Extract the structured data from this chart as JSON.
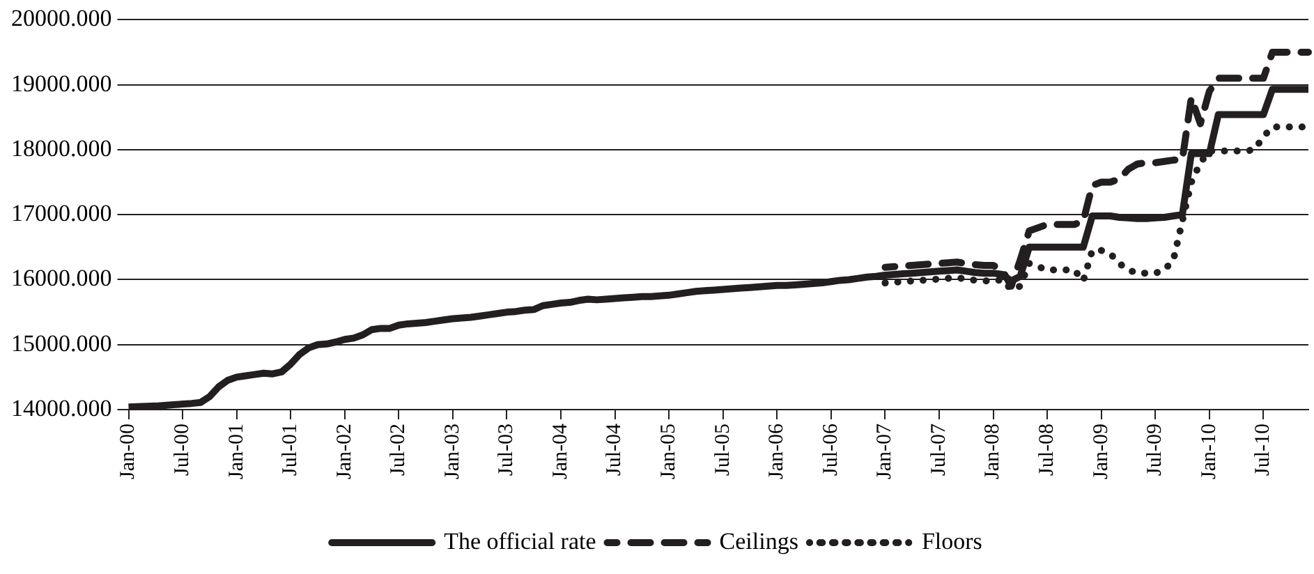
{
  "chart_data": {
    "type": "line",
    "categories": [
      "Jan-00",
      null,
      null,
      null,
      null,
      null,
      "Jul-00",
      null,
      null,
      null,
      null,
      null,
      "Jan-01",
      null,
      null,
      null,
      null,
      null,
      "Jul-01",
      null,
      null,
      null,
      null,
      null,
      "Jan-02",
      null,
      null,
      null,
      null,
      null,
      "Jul-02",
      null,
      null,
      null,
      null,
      null,
      "Jan-03",
      null,
      null,
      null,
      null,
      null,
      "Jul-03",
      null,
      null,
      null,
      null,
      null,
      "Jan-04",
      null,
      null,
      null,
      null,
      null,
      "Jul-04",
      null,
      null,
      null,
      null,
      null,
      "Jan-05",
      null,
      null,
      null,
      null,
      null,
      "Jul-05",
      null,
      null,
      null,
      null,
      null,
      "Jan-06",
      null,
      null,
      null,
      null,
      null,
      "Jul-06",
      null,
      null,
      null,
      null,
      null,
      "Jan-07",
      null,
      null,
      null,
      null,
      null,
      "Jul-07",
      null,
      null,
      null,
      null,
      null,
      "Jan-08",
      null,
      null,
      null,
      null,
      null,
      "Jul-08",
      null,
      null,
      null,
      null,
      null,
      "Jan-09",
      null,
      null,
      null,
      null,
      null,
      "Jul-09",
      null,
      null,
      null,
      null,
      null,
      "Jan-10",
      null,
      null,
      null,
      null,
      null,
      "Jul-10",
      null,
      null,
      null,
      null,
      null
    ],
    "series": [
      {
        "name": "The official rate",
        "color": "#231f20",
        "line_style": "solid",
        "values": [
          14040,
          14045,
          14050,
          14055,
          14065,
          14075,
          14085,
          14095,
          14110,
          14200,
          14350,
          14450,
          14500,
          14520,
          14540,
          14560,
          14550,
          14580,
          14700,
          14850,
          14950,
          15000,
          15010,
          15040,
          15080,
          15100,
          15150,
          15230,
          15250,
          15250,
          15300,
          15320,
          15330,
          15340,
          15360,
          15380,
          15400,
          15410,
          15420,
          15440,
          15460,
          15480,
          15500,
          15510,
          15530,
          15540,
          15600,
          15620,
          15640,
          15650,
          15680,
          15700,
          15690,
          15700,
          15710,
          15720,
          15730,
          15740,
          15740,
          15750,
          15760,
          15780,
          15800,
          15820,
          15830,
          15840,
          15850,
          15860,
          15870,
          15880,
          15890,
          15900,
          15910,
          15910,
          15920,
          15930,
          15940,
          15950,
          15970,
          15990,
          16000,
          16020,
          16040,
          16050,
          16070,
          16080,
          16090,
          16100,
          16110,
          16120,
          16130,
          16140,
          16150,
          16130,
          16110,
          16100,
          16100,
          16080,
          15980,
          16050,
          16500,
          16500,
          16500,
          16500,
          16500,
          16500,
          16500,
          16980,
          16980,
          16980,
          16960,
          16950,
          16940,
          16940,
          16950,
          16960,
          16980,
          17000,
          17940,
          17940,
          17940,
          18540,
          18540,
          18540,
          18540,
          18540,
          18540,
          18930,
          18930,
          18930,
          18930,
          18930
        ]
      },
      {
        "name": "Ceilings",
        "color": "#231f20",
        "line_style": "dashed",
        "values": [
          null,
          null,
          null,
          null,
          null,
          null,
          null,
          null,
          null,
          null,
          null,
          null,
          null,
          null,
          null,
          null,
          null,
          null,
          null,
          null,
          null,
          null,
          null,
          null,
          null,
          null,
          null,
          null,
          null,
          null,
          null,
          null,
          null,
          null,
          null,
          null,
          null,
          null,
          null,
          null,
          null,
          null,
          null,
          null,
          null,
          null,
          null,
          null,
          null,
          null,
          null,
          null,
          null,
          null,
          null,
          null,
          null,
          null,
          null,
          null,
          null,
          null,
          null,
          null,
          null,
          null,
          null,
          null,
          null,
          null,
          null,
          null,
          null,
          null,
          null,
          null,
          null,
          null,
          null,
          null,
          null,
          null,
          null,
          null,
          16190,
          16200,
          16210,
          16220,
          16230,
          16240,
          16250,
          16260,
          16270,
          16250,
          16230,
          16220,
          16220,
          16150,
          15900,
          16300,
          16750,
          16800,
          16850,
          16850,
          16850,
          16850,
          16900,
          17450,
          17500,
          17500,
          17550,
          17700,
          17780,
          17800,
          17800,
          17820,
          17840,
          17850,
          18800,
          18400,
          18900,
          19100,
          19100,
          19100,
          19100,
          19100,
          19100,
          19500,
          19500,
          19500,
          19500,
          19500
        ]
      },
      {
        "name": "Floors",
        "color": "#231f20",
        "line_style": "dotted",
        "values": [
          null,
          null,
          null,
          null,
          null,
          null,
          null,
          null,
          null,
          null,
          null,
          null,
          null,
          null,
          null,
          null,
          null,
          null,
          null,
          null,
          null,
          null,
          null,
          null,
          null,
          null,
          null,
          null,
          null,
          null,
          null,
          null,
          null,
          null,
          null,
          null,
          null,
          null,
          null,
          null,
          null,
          null,
          null,
          null,
          null,
          null,
          null,
          null,
          null,
          null,
          null,
          null,
          null,
          null,
          null,
          null,
          null,
          null,
          null,
          null,
          null,
          null,
          null,
          null,
          null,
          null,
          null,
          null,
          null,
          null,
          null,
          null,
          null,
          null,
          null,
          null,
          null,
          null,
          null,
          null,
          null,
          null,
          null,
          null,
          15950,
          15960,
          15970,
          15980,
          15990,
          16000,
          16010,
          16020,
          16030,
          16010,
          15990,
          15980,
          15980,
          16000,
          15850,
          15900,
          16250,
          16200,
          16150,
          16150,
          16150,
          16150,
          15980,
          16450,
          16450,
          16400,
          16250,
          16150,
          16100,
          16100,
          16100,
          16150,
          16300,
          16900,
          17500,
          17800,
          17980,
          17980,
          17980,
          17980,
          17980,
          18000,
          18200,
          18350,
          18350,
          18350,
          18350,
          18350
        ]
      }
    ],
    "ylim": [
      14000,
      20000
    ],
    "yticks": [
      {
        "value": 14000,
        "label": "14000.000"
      },
      {
        "value": 15000,
        "label": "15000.000"
      },
      {
        "value": 16000,
        "label": "16000.000"
      },
      {
        "value": 17000,
        "label": "17000.000"
      },
      {
        "value": 18000,
        "label": "18000.000"
      },
      {
        "value": 19000,
        "label": "19000.000"
      },
      {
        "value": 20000,
        "label": "20000.000"
      }
    ],
    "grid": "y",
    "legend": "bottom",
    "marker": "none"
  }
}
